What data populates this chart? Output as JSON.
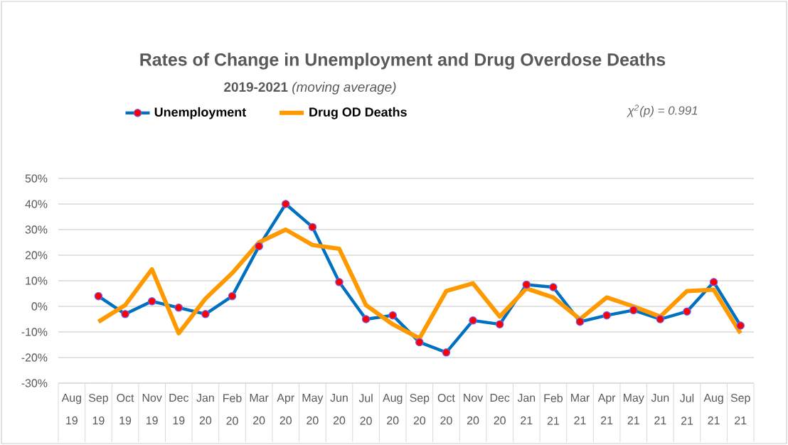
{
  "chart_data": {
    "type": "line",
    "title": "Rates of Change in Unemployment and Drug Overdose Deaths",
    "subtitle": "**2019-2021** *(moving average)*",
    "categories": [
      "Aug 19",
      "Sep 19",
      "Oct 19",
      "Nov 19",
      "Dec 19",
      "Jan 20",
      "Feb 20",
      "Mar 20",
      "Apr 20",
      "May 20",
      "Jun 20",
      "Jul 20",
      "Aug 20",
      "Sep 20",
      "Oct 20",
      "Nov 20",
      "Dec 20",
      "Jan 21",
      "Feb 21",
      "Mar 21",
      "Apr 21",
      "May 21",
      "Jun 21",
      "Jul 21",
      "Aug 21",
      "Sep 21"
    ],
    "series": [
      {
        "name": "Unemployment",
        "color": "#0070c0",
        "marker": "circle",
        "values": [
          null,
          4,
          -3,
          2,
          -0.5,
          -3,
          4,
          23.5,
          40,
          31,
          9.5,
          -5,
          -3.5,
          -14,
          -18,
          -5.5,
          -7,
          8.5,
          7.5,
          -6,
          -3.5,
          -1.5,
          -5,
          -2,
          9.5,
          -7.5
        ]
      },
      {
        "name": "Drug OD Deaths",
        "color": "#ff9900",
        "marker": "none",
        "values": [
          null,
          -6,
          0.5,
          14.5,
          -10.5,
          3,
          13,
          25,
          30,
          24,
          22.5,
          0.5,
          -7,
          -12.5,
          6,
          9,
          -4,
          7,
          3.5,
          -5,
          3.5,
          0,
          -4,
          6,
          6.5,
          -10.5
        ]
      }
    ],
    "ylim": [
      -30,
      50
    ],
    "yticks": [
      {
        "value": -30,
        "label": "-30%"
      },
      {
        "value": -20,
        "label": "-20%"
      },
      {
        "value": -10,
        "label": "-10%"
      },
      {
        "value": 0,
        "label": "0%"
      },
      {
        "value": 10,
        "label": "10%"
      },
      {
        "value": 20,
        "label": "20%"
      },
      {
        "value": 30,
        "label": "30%"
      },
      {
        "value": 40,
        "label": "40%"
      },
      {
        "value": 50,
        "label": "50%"
      }
    ],
    "grid": "y",
    "legend": "top",
    "annotations": [
      "*χ$^{2}$(p) = 0.991*"
    ]
  }
}
